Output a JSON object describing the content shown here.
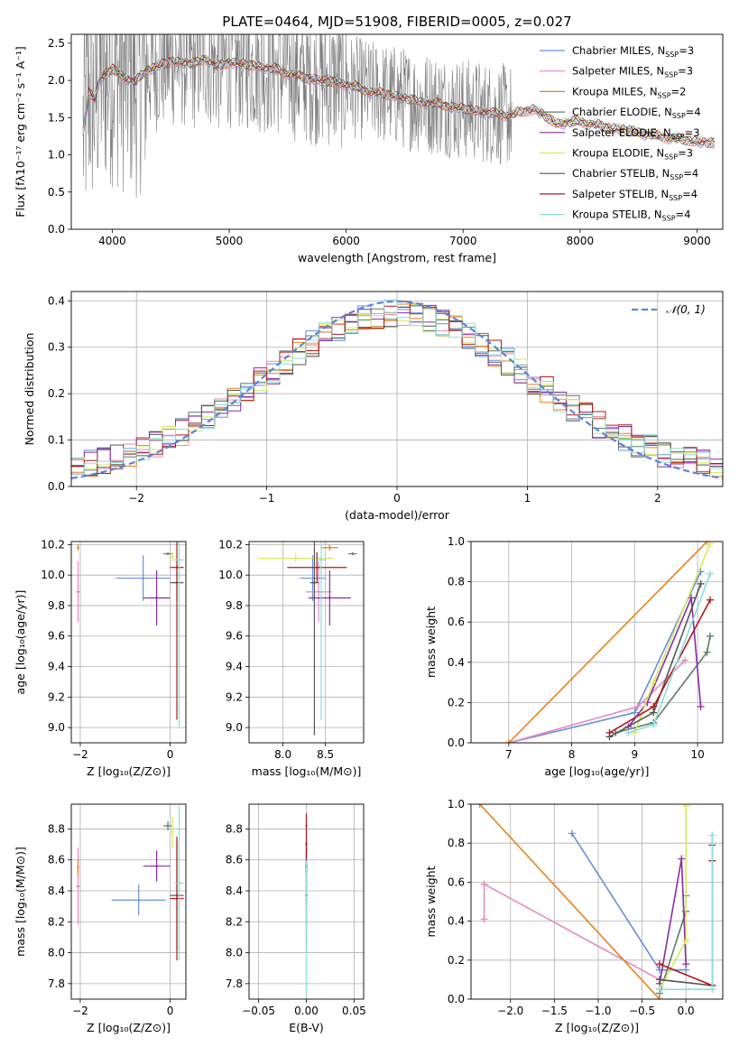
{
  "figure_title": "PLATE=0464, MJD=51908, FIBERID=0005, z=0.027",
  "legend": [
    {
      "name": "Chabrier MILES",
      "nssp": "3",
      "color": "#6a8fd8"
    },
    {
      "name": "Salpeter MILES",
      "nssp": "3",
      "color": "#e58ac0"
    },
    {
      "name": "Kroupa MILES",
      "nssp": "2",
      "color": "#e8801c"
    },
    {
      "name": "Chabrier ELODIE",
      "nssp": "4",
      "color": "#5a7f64"
    },
    {
      "name": "Salpeter ELODIE",
      "nssp": "3",
      "color": "#8a2aa8"
    },
    {
      "name": "Kroupa ELODIE",
      "nssp": "3",
      "color": "#d4ec58"
    },
    {
      "name": "Chabrier STELIB",
      "nssp": "4",
      "color": "#555555"
    },
    {
      "name": "Salpeter STELIB",
      "nssp": "4",
      "color": "#b01818"
    },
    {
      "name": "Kroupa STELIB",
      "nssp": "4",
      "color": "#8cdcdc"
    }
  ],
  "nssp_prefix": "N",
  "nssp_sub": "SSP",
  "chart_data": [
    {
      "id": "spectrum",
      "type": "line",
      "xlabel": "wavelength [Angstrom, rest frame]",
      "ylabel": "Flux [fλ10⁻¹⁷ erg cm⁻² s⁻¹ A⁻¹]",
      "xlim": [
        3650,
        9220
      ],
      "ylim": [
        0,
        2.62
      ],
      "xticks": [
        4000,
        5000,
        6000,
        7000,
        8000,
        9000
      ],
      "yticks": [
        0.0,
        0.5,
        1.0,
        1.5,
        2.0,
        2.5
      ],
      "observed_color": "#808080",
      "observed_range": [
        3750,
        7420
      ],
      "model_continuum": {
        "x": [
          3750,
          3800,
          3850,
          3900,
          3950,
          4000,
          4100,
          4200,
          4300,
          4400,
          4500,
          4600,
          4700,
          4800,
          4900,
          5000,
          5200,
          5400,
          5600,
          5800,
          6000,
          6200,
          6400,
          6600,
          6800,
          7000,
          7200,
          7400,
          7600,
          7800,
          8000,
          8200,
          8400,
          8600,
          8800,
          9000,
          9150
        ],
        "y": [
          1.3,
          1.85,
          1.75,
          2.05,
          2.1,
          2.15,
          2.05,
          1.98,
          2.15,
          2.2,
          2.25,
          2.25,
          2.22,
          2.3,
          2.18,
          2.25,
          2.2,
          2.15,
          2.05,
          2.0,
          1.95,
          1.85,
          1.8,
          1.72,
          1.68,
          1.62,
          1.57,
          1.53,
          1.62,
          1.42,
          1.45,
          1.38,
          1.33,
          1.27,
          1.22,
          1.18,
          1.15
        ]
      }
    },
    {
      "id": "residual_hist",
      "type": "bar",
      "xlabel": "(data-model)/error",
      "ylabel": "Normed distribution",
      "xlim": [
        -2.5,
        2.5
      ],
      "ylim": [
        0,
        0.42
      ],
      "xticks": [
        -2,
        -1,
        0,
        1,
        2
      ],
      "yticks": [
        0.0,
        0.1,
        0.2,
        0.3,
        0.4
      ],
      "bin_edges_range": [
        -2.5,
        2.5
      ],
      "bins": 50,
      "gaussian_label": "𝒩(0, 1)",
      "gaussian_color": "#5b84d6"
    },
    {
      "id": "age_vs_Z",
      "type": "scatter",
      "xlabel": "Z [log₁₀(Z/Z⊙)]",
      "ylabel": "age  [log₁₀(age/yr)]",
      "xlim": [
        -2.2,
        0.35
      ],
      "ylim": [
        8.9,
        10.22
      ],
      "xticks": [
        -2,
        0
      ],
      "yticks": [
        9.0,
        9.2,
        9.4,
        9.6,
        9.8,
        10.0,
        10.2
      ],
      "points": [
        {
          "x": -0.6,
          "y": 9.98,
          "xerr": 0.6,
          "yerr": 0.15
        },
        {
          "x": -2.05,
          "y": 9.89,
          "xerr": 0.05,
          "yerr": 0.2
        },
        {
          "x": -2.05,
          "y": 10.18,
          "xerr": 0.02,
          "yerr": 0.02
        },
        {
          "x": -0.05,
          "y": 10.14,
          "xerr": 0.1,
          "yerr": 0.01
        },
        {
          "x": -0.3,
          "y": 9.85,
          "xerr": 0.3,
          "yerr": 0.18
        },
        {
          "x": 0.05,
          "y": 10.12,
          "xerr": 0.05,
          "yerr": 0.03
        },
        {
          "x": 0.15,
          "y": 9.95,
          "xerr": 0.15,
          "yerr": 0.12
        },
        {
          "x": 0.15,
          "y": 10.05,
          "xerr": 0.15,
          "yerr": 1.0
        },
        {
          "x": 0.2,
          "y": 10.1,
          "xerr": 0.1,
          "yerr": 1.1
        }
      ]
    },
    {
      "id": "age_vs_mass",
      "type": "scatter",
      "xlabel": "mass [log₁₀(M/M⊙)]",
      "ylabel": "",
      "xlim": [
        7.6,
        8.95
      ],
      "ylim": [
        8.9,
        10.22
      ],
      "xticks": [
        8.0,
        8.5
      ],
      "yticks": [
        9.0,
        9.2,
        9.4,
        9.6,
        9.8,
        10.0,
        10.2
      ],
      "points": [
        {
          "x": 8.35,
          "y": 9.98,
          "xerr": 0.15,
          "yerr": 0.15
        },
        {
          "x": 8.42,
          "y": 9.89,
          "xerr": 0.15,
          "yerr": 0.2
        },
        {
          "x": 8.55,
          "y": 10.18,
          "xerr": 0.1,
          "yerr": 0.02
        },
        {
          "x": 8.82,
          "y": 10.14,
          "xerr": 0.05,
          "yerr": 0.01
        },
        {
          "x": 8.55,
          "y": 9.85,
          "xerr": 0.25,
          "yerr": 0.18
        },
        {
          "x": 8.15,
          "y": 10.11,
          "xerr": 0.45,
          "yerr": 0.03
        },
        {
          "x": 8.37,
          "y": 9.95,
          "xerr": 0.05,
          "yerr": 1.0
        },
        {
          "x": 8.4,
          "y": 10.05,
          "xerr": 0.35,
          "yerr": 0.1
        },
        {
          "x": 8.45,
          "y": 10.1,
          "xerr": 0.05,
          "yerr": 1.05
        }
      ]
    },
    {
      "id": "massweight_vs_age",
      "type": "line",
      "xlabel": "age  [log₁₀(age/yr)]",
      "ylabel": "mass weight",
      "xlim": [
        6.4,
        10.4
      ],
      "ylim": [
        0,
        1.0
      ],
      "xticks": [
        7,
        8,
        9,
        10
      ],
      "yticks": [
        0.0,
        0.2,
        0.4,
        0.6,
        0.8,
        1.0
      ],
      "series": [
        {
          "x": [
            7.0,
            9.0,
            10.05
          ],
          "y": [
            0.0,
            0.15,
            0.85
          ]
        },
        {
          "x": [
            7.0,
            9.05,
            9.8
          ],
          "y": [
            0.0,
            0.18,
            0.41
          ]
        },
        {
          "x": [
            7.0,
            10.15
          ],
          "y": [
            0.0,
            1.0
          ]
        },
        {
          "x": [
            8.7,
            9.3,
            10.15,
            10.2
          ],
          "y": [
            0.05,
            0.1,
            0.45,
            0.53
          ]
        },
        {
          "x": [
            8.9,
            9.2,
            9.9,
            10.05
          ],
          "y": [
            0.08,
            0.2,
            0.72,
            0.18
          ]
        },
        {
          "x": [
            9.0,
            9.3,
            10.2
          ],
          "y": [
            0.05,
            0.3,
            0.99
          ]
        },
        {
          "x": [
            8.6,
            9.3,
            10.05
          ],
          "y": [
            0.03,
            0.15,
            0.79
          ]
        },
        {
          "x": [
            8.6,
            9.3,
            10.2
          ],
          "y": [
            0.05,
            0.18,
            0.71
          ]
        },
        {
          "x": [
            8.9,
            9.3,
            10.2
          ],
          "y": [
            0.05,
            0.09,
            0.84
          ]
        }
      ]
    },
    {
      "id": "mass_vs_Z",
      "type": "scatter",
      "xlabel": "Z [log₁₀(Z/Z⊙)]",
      "ylabel": "mass [log₁₀(M/M⊙)]",
      "xlim": [
        -2.2,
        0.35
      ],
      "ylim": [
        7.7,
        8.96
      ],
      "xticks": [
        -2,
        0
      ],
      "yticks": [
        7.8,
        8.0,
        8.2,
        8.4,
        8.6,
        8.8
      ],
      "points": [
        {
          "x": -0.7,
          "y": 8.34,
          "xerr": 0.6,
          "yerr": 0.1
        },
        {
          "x": -2.05,
          "y": 8.43,
          "xerr": 0.05,
          "yerr": 0.25
        },
        {
          "x": -2.05,
          "y": 8.55,
          "xerr": 0.02,
          "yerr": 0.05
        },
        {
          "x": -0.05,
          "y": 8.82,
          "xerr": 0.1,
          "yerr": 0.03
        },
        {
          "x": -0.3,
          "y": 8.56,
          "xerr": 0.3,
          "yerr": 0.1
        },
        {
          "x": 0.05,
          "y": 8.78,
          "xerr": 0.05,
          "yerr": 0.1
        },
        {
          "x": 0.15,
          "y": 8.37,
          "xerr": 0.15,
          "yerr": 0.35
        },
        {
          "x": 0.15,
          "y": 8.35,
          "xerr": 0.15,
          "yerr": 0.4
        },
        {
          "x": 0.2,
          "y": 8.45,
          "xerr": 0.1,
          "yerr": 0.5
        }
      ]
    },
    {
      "id": "mass_vs_ebv",
      "type": "scatter",
      "xlabel": "E(B-V)",
      "ylabel": "",
      "xlim": [
        -0.06,
        0.06
      ],
      "ylim": [
        7.7,
        8.96
      ],
      "xticks": [
        -0.05,
        0.0,
        0.05
      ],
      "yticks": [
        7.8,
        8.0,
        8.2,
        8.4,
        8.6,
        8.8
      ],
      "points": [
        {
          "x": 0.0,
          "y": 8.34,
          "xerr": 0,
          "yerr": 0.1
        },
        {
          "x": 0.0,
          "y": 8.43,
          "xerr": 0,
          "yerr": 0.25
        },
        {
          "x": 0.0,
          "y": 8.55,
          "xerr": 0,
          "yerr": 0.05
        },
        {
          "x": 0.0,
          "y": 8.82,
          "xerr": 0,
          "yerr": 0.03
        },
        {
          "x": 0.0,
          "y": 8.56,
          "xerr": 0,
          "yerr": 0.1
        },
        {
          "x": 0.0,
          "y": 8.8,
          "xerr": 0,
          "yerr": 0.1
        },
        {
          "x": 0.0,
          "y": 8.37,
          "xerr": 0,
          "yerr": 0.35
        },
        {
          "x": 0.0,
          "y": 8.7,
          "xerr": 0,
          "yerr": 0.2
        },
        {
          "x": 0.0,
          "y": 8.1,
          "xerr": 0,
          "yerr": 0.5
        }
      ]
    },
    {
      "id": "massweight_vs_Z",
      "type": "line",
      "xlabel": "Z [log₁₀(Z/Z⊙)]",
      "ylabel": "mass weight",
      "xlim": [
        -2.45,
        0.42
      ],
      "ylim": [
        0,
        1.0
      ],
      "xticks": [
        -2.0,
        -1.5,
        -1.0,
        -0.5,
        0.0
      ],
      "yticks": [
        0.0,
        0.2,
        0.4,
        0.6,
        0.8,
        1.0
      ],
      "series": [
        {
          "x": [
            -1.3,
            -0.3,
            0.0
          ],
          "y": [
            0.85,
            0.15,
            0.15
          ]
        },
        {
          "x": [
            -2.3,
            -2.3,
            -0.3
          ],
          "y": [
            0.41,
            0.59,
            0.1
          ]
        },
        {
          "x": [
            -2.35,
            -0.3
          ],
          "y": [
            1.0,
            0.0
          ]
        },
        {
          "x": [
            -0.3,
            0.0,
            0.0
          ],
          "y": [
            0.03,
            0.45,
            0.53
          ]
        },
        {
          "x": [
            -0.3,
            -0.05,
            0.0
          ],
          "y": [
            0.08,
            0.72,
            0.18
          ]
        },
        {
          "x": [
            -0.3,
            0.0,
            0.0
          ],
          "y": [
            0.05,
            0.3,
            0.99
          ]
        },
        {
          "x": [
            -0.3,
            0.3,
            0.3
          ],
          "y": [
            0.1,
            0.07,
            0.79
          ]
        },
        {
          "x": [
            -0.3,
            0.3,
            0.3
          ],
          "y": [
            0.18,
            0.07,
            0.71
          ]
        },
        {
          "x": [
            -0.3,
            0.3,
            0.3
          ],
          "y": [
            0.05,
            0.05,
            0.84
          ]
        }
      ]
    }
  ]
}
